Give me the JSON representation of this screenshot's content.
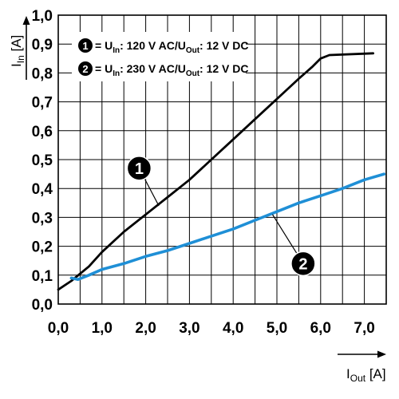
{
  "chart_data": {
    "type": "line",
    "title": "",
    "xlabel": {
      "main": "I",
      "sub": "Out",
      "unit": "[A]"
    },
    "ylabel": {
      "main": "I",
      "sub": "In",
      "unit": "[A]"
    },
    "xlim": [
      0,
      7.5
    ],
    "ylim": [
      0,
      1.0
    ],
    "x_ticks": [
      "0,0",
      "1,0",
      "2,0",
      "3,0",
      "4,0",
      "5,0",
      "6,0",
      "7,0"
    ],
    "y_ticks": [
      "0,0",
      "0,1",
      "0,2",
      "0,3",
      "0,4",
      "0,5",
      "0,6",
      "0,7",
      "0,8",
      "0,9",
      "1,0"
    ],
    "grid": true,
    "legend_position": "top-left",
    "series": [
      {
        "name": "1",
        "color": "#000000",
        "legend": {
          "u_label": "U",
          "u_sub": "In",
          "u_value": ": 120 V AC/U",
          "out_sub": "Out",
          "out_value": ": 12 V DC"
        },
        "points": [
          [
            0,
            0.05
          ],
          [
            0.3,
            0.08
          ],
          [
            0.7,
            0.13
          ],
          [
            1.0,
            0.18
          ],
          [
            1.5,
            0.25
          ],
          [
            2.0,
            0.31
          ],
          [
            2.5,
            0.37
          ],
          [
            3.0,
            0.43
          ],
          [
            3.5,
            0.5
          ],
          [
            4.0,
            0.57
          ],
          [
            4.5,
            0.64
          ],
          [
            5.0,
            0.71
          ],
          [
            5.5,
            0.78
          ],
          [
            5.8,
            0.82
          ],
          [
            6.0,
            0.85
          ],
          [
            6.2,
            0.862
          ],
          [
            7.2,
            0.868
          ]
        ]
      },
      {
        "name": "2",
        "color": "#1f8fd6",
        "legend": {
          "u_label": "U",
          "u_sub": "In",
          "u_value": ": 230 V AC/U",
          "out_sub": "Out",
          "out_value": ": 12 V DC"
        },
        "points": [
          [
            0.3,
            0.09
          ],
          [
            0.45,
            0.085
          ],
          [
            0.7,
            0.1
          ],
          [
            1.0,
            0.12
          ],
          [
            1.5,
            0.14
          ],
          [
            2.0,
            0.165
          ],
          [
            2.5,
            0.185
          ],
          [
            3.0,
            0.21
          ],
          [
            3.5,
            0.235
          ],
          [
            4.0,
            0.26
          ],
          [
            4.5,
            0.29
          ],
          [
            5.0,
            0.32
          ],
          [
            5.5,
            0.35
          ],
          [
            6.0,
            0.375
          ],
          [
            6.5,
            0.4
          ],
          [
            7.0,
            0.43
          ],
          [
            7.45,
            0.45
          ]
        ]
      }
    ],
    "annotations": [
      {
        "label": "1",
        "series": "1",
        "badge_at": [
          1.85,
          0.47
        ],
        "points_to": [
          2.3,
          0.34
        ]
      },
      {
        "label": "2",
        "series": "2",
        "badge_at": [
          5.6,
          0.14
        ],
        "points_to": [
          4.9,
          0.31
        ]
      }
    ]
  }
}
